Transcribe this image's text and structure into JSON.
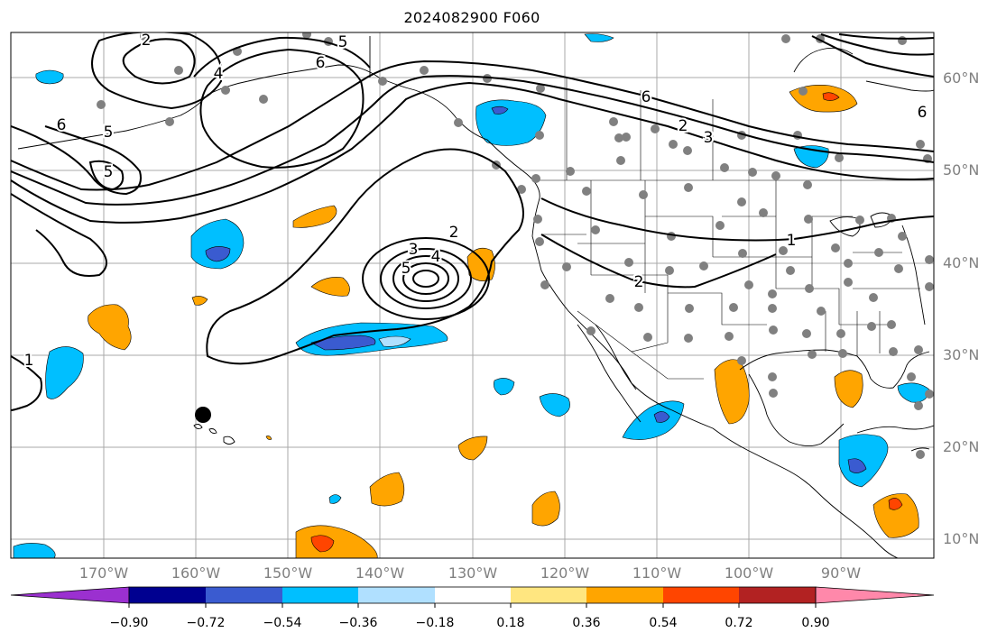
{
  "title": "2024082900 F060",
  "lat_labels": [
    "60°N",
    "50°N",
    "40°N",
    "30°N",
    "20°N",
    "10°N"
  ],
  "lon_labels": [
    "170°W",
    "160°W",
    "150°W",
    "140°W",
    "130°W",
    "120°W",
    "110°W",
    "100°W",
    "90°W"
  ],
  "contour_labels": [
    "1",
    "2",
    "2",
    "2",
    "3",
    "3",
    "4",
    "4",
    "5",
    "5",
    "5",
    "5",
    "6",
    "6",
    "6",
    "6",
    "1",
    "2"
  ],
  "colorbar": {
    "ticks": [
      "−0.90",
      "−0.72",
      "−0.54",
      "−0.36",
      "−0.18",
      "0.18",
      "0.36",
      "0.54",
      "0.72",
      "0.90"
    ],
    "colors": [
      "#9b30d0",
      "#000090",
      "#3a5bd0",
      "#00bfff",
      "#b0e0ff",
      "#ffffff",
      "#ffe680",
      "#ffa500",
      "#ff4500",
      "#b22222",
      "#ff88aa"
    ]
  },
  "field_colors": {
    "dark_blue": "#3a5bd0",
    "blue": "#00bfff",
    "light_blue": "#b0e0ff",
    "yellow": "#ffe680",
    "orange": "#ffa500",
    "red_orange": "#ff4500"
  }
}
